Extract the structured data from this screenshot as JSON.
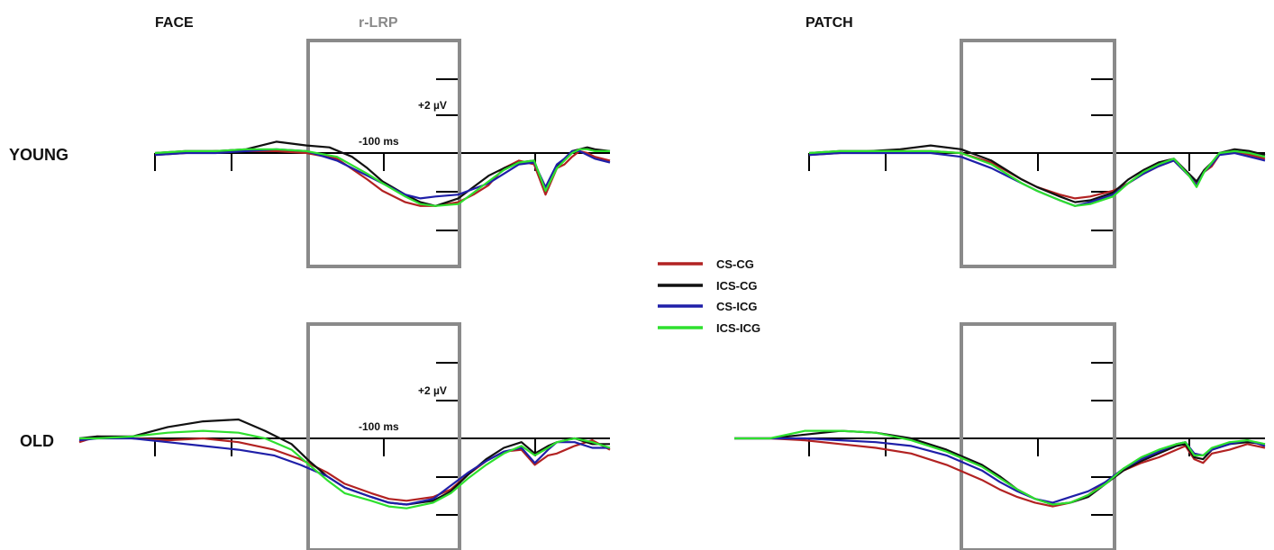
{
  "column_titles": [
    "FACE",
    "PATCH"
  ],
  "row_titles": [
    "YOUNG",
    "OLD"
  ],
  "window_label": "r-LRP",
  "scale_label": "+2 µV",
  "time_label": "-100 ms",
  "legend": [
    {
      "name": "CS-CG",
      "color": "#b22222"
    },
    {
      "name": "ICS-CG",
      "color": "#111111"
    },
    {
      "name": "CS-ICG",
      "color": "#1f1fa8"
    },
    {
      "name": "ICS-ICG",
      "color": "#2ee02e"
    }
  ],
  "chart_data": [
    {
      "type": "line",
      "panel": "FACE / YOUNG",
      "xlim": [
        -500,
        100
      ],
      "ylim": [
        -4,
        4
      ],
      "series": [
        {
          "name": "CS-CG",
          "color": "#b22222",
          "x": [
            -500,
            -460,
            -420,
            -380,
            -340,
            -300,
            -260,
            -220,
            -200,
            -170,
            -150,
            -130,
            -100,
            -80,
            -60,
            -40,
            -20,
            0,
            15,
            30,
            40,
            50,
            60,
            70,
            80,
            100
          ],
          "y": [
            -0.1,
            0,
            0.1,
            0.1,
            0.1,
            0,
            -0.3,
            -1.4,
            -2,
            -2.6,
            -2.8,
            -2.8,
            -2.6,
            -2.2,
            -1.7,
            -0.8,
            -0.4,
            -0.6,
            -2.2,
            -0.8,
            -0.6,
            -0.2,
            0.1,
            0,
            -0.2,
            -0.4
          ]
        },
        {
          "name": "ICS-CG",
          "color": "#111111",
          "x": [
            -500,
            -460,
            -420,
            -380,
            -340,
            -300,
            -270,
            -240,
            -220,
            -200,
            -170,
            -150,
            -130,
            -100,
            -80,
            -60,
            -40,
            -20,
            0,
            15,
            30,
            40,
            50,
            60,
            70,
            80,
            100
          ],
          "y": [
            0,
            0.1,
            0.1,
            0.2,
            0.6,
            0.4,
            0.3,
            -0.2,
            -0.8,
            -1.5,
            -2.2,
            -2.6,
            -2.8,
            -2.4,
            -1.8,
            -1.2,
            -0.8,
            -0.5,
            -0.4,
            -2,
            -0.7,
            -0.3,
            0.1,
            0.2,
            0.3,
            0.2,
            0.1
          ]
        },
        {
          "name": "CS-ICG",
          "color": "#1f1fa8",
          "x": [
            -500,
            -460,
            -420,
            -380,
            -340,
            -300,
            -260,
            -220,
            -200,
            -170,
            -150,
            -130,
            -100,
            -80,
            -60,
            -40,
            -20,
            0,
            15,
            30,
            40,
            50,
            60,
            70,
            80,
            100
          ],
          "y": [
            -0.1,
            0,
            0,
            0.1,
            0.2,
            0.1,
            -0.4,
            -1.2,
            -1.6,
            -2.2,
            -2.4,
            -2.3,
            -2.2,
            -1.9,
            -1.6,
            -1.1,
            -0.6,
            -0.5,
            -1.8,
            -0.6,
            -0.3,
            0.1,
            0.1,
            -0.1,
            -0.3,
            -0.5
          ]
        },
        {
          "name": "ICS-ICG",
          "color": "#2ee02e",
          "x": [
            -500,
            -460,
            -420,
            -380,
            -340,
            -300,
            -260,
            -220,
            -200,
            -170,
            -150,
            -130,
            -100,
            -80,
            -60,
            -40,
            -20,
            0,
            15,
            30,
            40,
            50,
            60,
            70,
            80,
            100
          ],
          "y": [
            0,
            0.1,
            0.1,
            0.2,
            0.2,
            0.1,
            -0.2,
            -1.1,
            -1.6,
            -2.3,
            -2.7,
            -2.8,
            -2.7,
            -2.1,
            -1.5,
            -0.9,
            -0.5,
            -0.4,
            -2,
            -0.8,
            -0.4,
            0,
            0.2,
            0.2,
            0.1,
            0.1
          ]
        }
      ]
    },
    {
      "type": "line",
      "panel": "PATCH / YOUNG",
      "xlim": [
        -500,
        100
      ],
      "ylim": [
        -4,
        4
      ],
      "series": [
        {
          "name": "CS-CG",
          "color": "#b22222",
          "x": [
            -500,
            -460,
            -420,
            -380,
            -340,
            -300,
            -260,
            -220,
            -200,
            -170,
            -150,
            -130,
            -100,
            -80,
            -60,
            -40,
            -20,
            0,
            10,
            20,
            30,
            40,
            60,
            80,
            100
          ],
          "y": [
            -0.1,
            0,
            0.1,
            0.1,
            0.1,
            0,
            -0.5,
            -1.4,
            -1.8,
            -2.2,
            -2.4,
            -2.3,
            -2,
            -1.6,
            -1.1,
            -0.7,
            -0.4,
            -1.2,
            -1.6,
            -1,
            -0.7,
            -0.1,
            0.1,
            -0.1,
            -0.3
          ]
        },
        {
          "name": "ICS-CG",
          "color": "#111111",
          "x": [
            -500,
            -460,
            -420,
            -380,
            -340,
            -300,
            -260,
            -220,
            -200,
            -170,
            -150,
            -130,
            -100,
            -80,
            -60,
            -40,
            -20,
            0,
            10,
            20,
            30,
            40,
            60,
            80,
            100
          ],
          "y": [
            0,
            0.1,
            0.1,
            0.2,
            0.4,
            0.2,
            -0.4,
            -1.4,
            -1.8,
            -2.3,
            -2.6,
            -2.5,
            -2.1,
            -1.4,
            -0.9,
            -0.5,
            -0.3,
            -1.1,
            -1.5,
            -0.9,
            -0.5,
            0,
            0.2,
            0.1,
            -0.1
          ]
        },
        {
          "name": "CS-ICG",
          "color": "#1f1fa8",
          "x": [
            -500,
            -460,
            -420,
            -380,
            -340,
            -300,
            -260,
            -220,
            -200,
            -170,
            -150,
            -130,
            -100,
            -80,
            -60,
            -40,
            -20,
            0,
            10,
            20,
            30,
            40,
            60,
            80,
            100
          ],
          "y": [
            -0.1,
            0,
            0,
            0,
            0,
            -0.2,
            -0.8,
            -1.6,
            -2,
            -2.5,
            -2.8,
            -2.6,
            -2.2,
            -1.6,
            -1.1,
            -0.7,
            -0.4,
            -1.2,
            -1.7,
            -1,
            -0.6,
            -0.1,
            0,
            -0.2,
            -0.4
          ]
        },
        {
          "name": "ICS-ICG",
          "color": "#2ee02e",
          "x": [
            -500,
            -460,
            -420,
            -380,
            -340,
            -300,
            -260,
            -220,
            -200,
            -170,
            -150,
            -130,
            -100,
            -80,
            -60,
            -40,
            -20,
            0,
            10,
            20,
            30,
            40,
            60,
            80,
            100
          ],
          "y": [
            0,
            0.1,
            0.1,
            0.1,
            0.1,
            0,
            -0.6,
            -1.6,
            -2,
            -2.5,
            -2.8,
            -2.7,
            -2.3,
            -1.6,
            -1,
            -0.6,
            -0.3,
            -1.2,
            -1.8,
            -1,
            -0.5,
            0,
            0.1,
            0,
            -0.2
          ]
        }
      ]
    },
    {
      "type": "line",
      "panel": "FACE / OLD",
      "xlim": [
        -500,
        100
      ],
      "ylim": [
        -4,
        4
      ],
      "series": [
        {
          "name": "CS-CG",
          "color": "#b22222",
          "x": [
            -500,
            -480,
            -440,
            -400,
            -360,
            -320,
            -280,
            -250,
            -220,
            -200,
            -170,
            -150,
            -130,
            -100,
            -80,
            -60,
            -40,
            -20,
            0,
            15,
            30,
            40,
            60,
            80,
            100
          ],
          "y": [
            -0.2,
            0.1,
            0,
            -0.1,
            0,
            -0.2,
            -0.6,
            -1.1,
            -1.8,
            -2.4,
            -2.9,
            -3.2,
            -3.3,
            -3.1,
            -2.7,
            -1.9,
            -1.2,
            -0.7,
            -0.6,
            -1.4,
            -0.9,
            -0.8,
            -0.4,
            -0.1,
            -0.6
          ]
        },
        {
          "name": "ICS-CG",
          "color": "#111111",
          "x": [
            -500,
            -480,
            -440,
            -400,
            -360,
            -320,
            -290,
            -260,
            -240,
            -220,
            -200,
            -170,
            -150,
            -130,
            -100,
            -80,
            -60,
            -40,
            -20,
            0,
            15,
            30,
            40,
            60,
            80,
            100
          ],
          "y": [
            0,
            0.1,
            0.1,
            0.6,
            0.9,
            1,
            0.4,
            -0.3,
            -1.2,
            -2,
            -2.6,
            -3.1,
            -3.4,
            -3.5,
            -3.3,
            -2.8,
            -1.9,
            -1.1,
            -0.5,
            -0.2,
            -0.8,
            -0.4,
            -0.2,
            0,
            -0.3,
            -0.3
          ]
        },
        {
          "name": "CS-ICG",
          "color": "#1f1fa8",
          "x": [
            -500,
            -480,
            -440,
            -400,
            -360,
            -320,
            -280,
            -250,
            -220,
            -200,
            -170,
            -150,
            -130,
            -100,
            -80,
            -60,
            -40,
            -20,
            0,
            15,
            30,
            40,
            60,
            80,
            100
          ],
          "y": [
            -0.1,
            0,
            0,
            -0.2,
            -0.4,
            -0.6,
            -0.9,
            -1.4,
            -2,
            -2.6,
            -3.1,
            -3.4,
            -3.5,
            -3.2,
            -2.5,
            -1.8,
            -1.2,
            -0.7,
            -0.5,
            -1.3,
            -0.6,
            -0.2,
            -0.2,
            -0.5,
            -0.5
          ]
        },
        {
          "name": "ICS-ICG",
          "color": "#2ee02e",
          "x": [
            -500,
            -480,
            -440,
            -400,
            -360,
            -320,
            -290,
            -260,
            -240,
            -220,
            -200,
            -170,
            -150,
            -130,
            -100,
            -80,
            -60,
            -40,
            -20,
            0,
            15,
            30,
            40,
            60,
            80,
            100
          ],
          "y": [
            0,
            0,
            0.1,
            0.3,
            0.4,
            0.3,
            0,
            -0.6,
            -1.4,
            -2.2,
            -2.9,
            -3.3,
            -3.6,
            -3.7,
            -3.4,
            -2.9,
            -2.1,
            -1.4,
            -0.8,
            -0.4,
            -0.9,
            -0.5,
            -0.2,
            0,
            -0.2,
            -0.5
          ]
        }
      ]
    },
    {
      "type": "line",
      "panel": "PATCH / OLD",
      "xlim": [
        -500,
        100
      ],
      "ylim": [
        -4,
        4
      ],
      "series": [
        {
          "name": "CS-CG",
          "color": "#b22222",
          "x": [
            -500,
            -460,
            -420,
            -380,
            -340,
            -300,
            -260,
            -220,
            -200,
            -180,
            -160,
            -140,
            -120,
            -100,
            -80,
            -60,
            -40,
            -20,
            0,
            10,
            20,
            30,
            40,
            60,
            80,
            100
          ],
          "y": [
            0,
            0,
            -0.1,
            -0.3,
            -0.5,
            -0.8,
            -1.4,
            -2.2,
            -2.7,
            -3.1,
            -3.4,
            -3.6,
            -3.4,
            -3,
            -2.3,
            -1.7,
            -1.3,
            -1,
            -0.6,
            -0.4,
            -1.1,
            -1.3,
            -0.8,
            -0.6,
            -0.3,
            -0.5
          ]
        },
        {
          "name": "ICS-CG",
          "color": "#111111",
          "x": [
            -500,
            -460,
            -420,
            -380,
            -340,
            -300,
            -260,
            -220,
            -200,
            -180,
            -160,
            -140,
            -120,
            -100,
            -80,
            -60,
            -40,
            -20,
            0,
            10,
            20,
            30,
            40,
            60,
            80,
            100
          ],
          "y": [
            0,
            0,
            0.2,
            0.4,
            0.3,
            0,
            -0.6,
            -1.4,
            -2,
            -2.7,
            -3.2,
            -3.5,
            -3.4,
            -3.1,
            -2.4,
            -1.7,
            -1.2,
            -0.8,
            -0.4,
            -0.3,
            -1,
            -1.1,
            -0.6,
            -0.3,
            -0.2,
            -0.3
          ]
        },
        {
          "name": "CS-ICG",
          "color": "#1f1fa8",
          "x": [
            -500,
            -460,
            -420,
            -380,
            -340,
            -300,
            -260,
            -220,
            -200,
            -180,
            -160,
            -140,
            -120,
            -100,
            -80,
            -60,
            -40,
            -20,
            0,
            10,
            20,
            30,
            40,
            60,
            80,
            100
          ],
          "y": [
            0,
            0,
            0,
            -0.1,
            -0.2,
            -0.4,
            -0.9,
            -1.7,
            -2.3,
            -2.8,
            -3.2,
            -3.4,
            -3.1,
            -2.8,
            -2.3,
            -1.6,
            -1.1,
            -0.7,
            -0.3,
            -0.2,
            -0.8,
            -0.9,
            -0.6,
            -0.3,
            -0.1,
            -0.4
          ]
        },
        {
          "name": "ICS-ICG",
          "color": "#2ee02e",
          "x": [
            -500,
            -460,
            -420,
            -380,
            -340,
            -300,
            -260,
            -220,
            -200,
            -180,
            -160,
            -140,
            -120,
            -100,
            -80,
            -60,
            -40,
            -20,
            0,
            10,
            20,
            30,
            40,
            60,
            80,
            100
          ],
          "y": [
            0,
            0,
            0.4,
            0.4,
            0.3,
            -0.1,
            -0.7,
            -1.5,
            -2.1,
            -2.7,
            -3.2,
            -3.5,
            -3.4,
            -3,
            -2.4,
            -1.6,
            -1,
            -0.6,
            -0.3,
            -0.2,
            -0.9,
            -0.9,
            -0.5,
            -0.2,
            -0.1,
            -0.3
          ]
        }
      ]
    }
  ]
}
